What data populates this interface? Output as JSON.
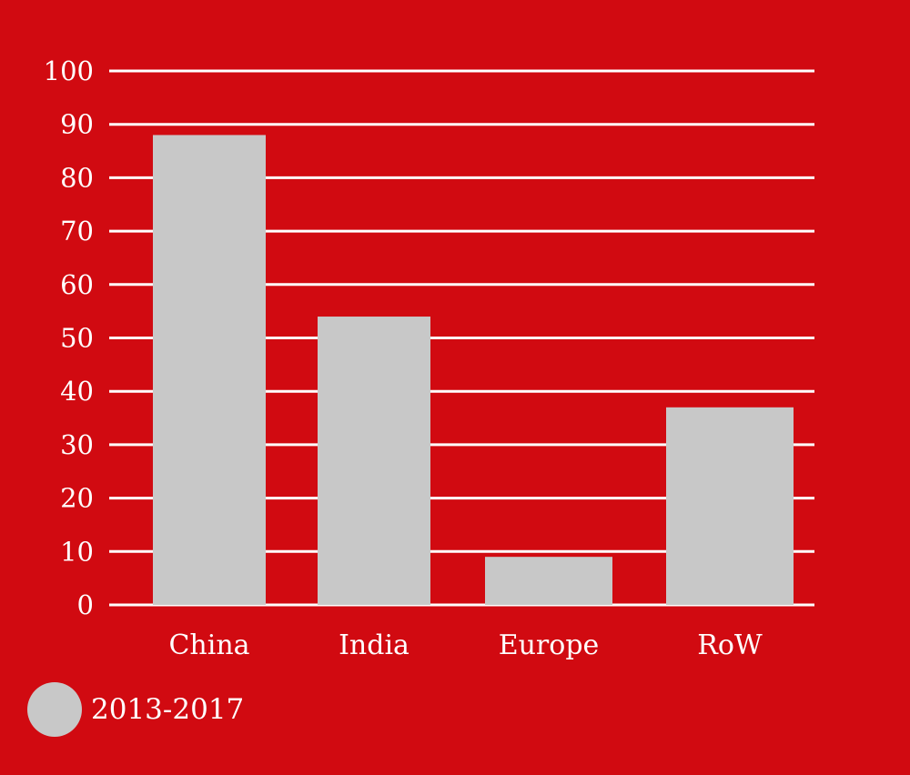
{
  "chart_data": {
    "type": "bar",
    "categories": [
      "China",
      "India",
      "Europe",
      "RoW"
    ],
    "series": [
      {
        "name": "2013-2017",
        "values": [
          88,
          54,
          9,
          37
        ]
      }
    ],
    "ylim": [
      0,
      100
    ],
    "yticks": [
      0,
      10,
      20,
      30,
      40,
      50,
      60,
      70,
      80,
      90,
      100
    ],
    "grid": true,
    "legend_position": "bottom-left",
    "colors": {
      "background": "#d10a11",
      "bar": "#c8c8c8",
      "grid": "#ffffff",
      "text": "#ffffff"
    }
  },
  "legend": {
    "items": [
      {
        "label": "2013-2017"
      }
    ]
  }
}
